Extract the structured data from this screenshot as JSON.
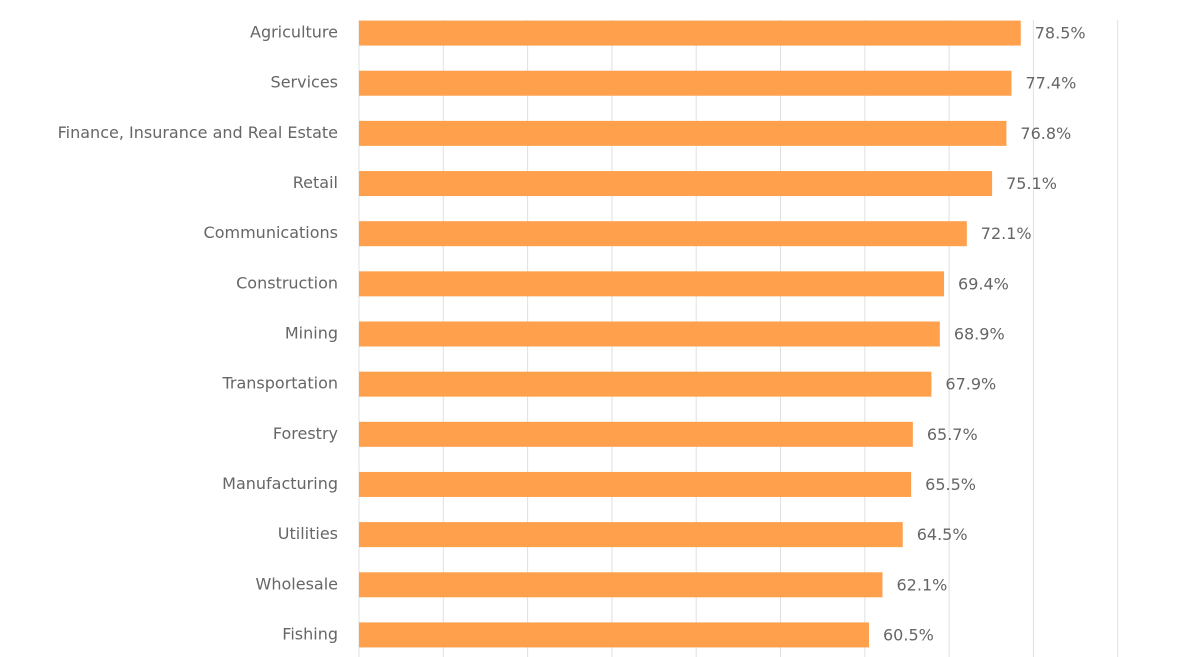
{
  "chart_data": {
    "type": "barh",
    "categories": [
      "Agriculture",
      "Services",
      "Finance, Insurance and Real Estate",
      "Retail",
      "Communications",
      "Construction",
      "Mining",
      "Transportation",
      "Forestry",
      "Manufacturing",
      "Utilities",
      "Wholesale",
      "Fishing"
    ],
    "values": [
      78.5,
      77.4,
      76.8,
      75.1,
      72.1,
      69.4,
      68.9,
      67.9,
      65.7,
      65.5,
      64.5,
      62.1,
      60.5
    ],
    "value_labels": [
      "78.5%",
      "77.4%",
      "76.8%",
      "75.1%",
      "72.1%",
      "69.4%",
      "68.9%",
      "67.9%",
      "65.7%",
      "65.5%",
      "64.5%",
      "62.1%",
      "60.5%"
    ],
    "color": "#ffa04d",
    "xlim": [
      0,
      90
    ],
    "xticks": [
      0,
      10,
      20,
      30,
      40,
      50,
      60,
      70,
      80,
      90
    ],
    "grid": true
  }
}
